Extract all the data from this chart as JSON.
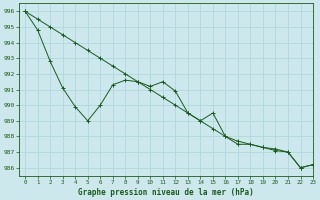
{
  "title": "Graphe pression niveau de la mer (hPa)",
  "bg_color": "#cce8ec",
  "grid_color": "#a8d4da",
  "line_color": "#1a5c1a",
  "xlim": [
    -0.5,
    23
  ],
  "ylim": [
    985.5,
    996.5
  ],
  "yticks": [
    986,
    987,
    988,
    989,
    990,
    991,
    992,
    993,
    994,
    995,
    996
  ],
  "xticks": [
    0,
    1,
    2,
    3,
    4,
    5,
    6,
    7,
    8,
    9,
    10,
    11,
    12,
    13,
    14,
    15,
    16,
    17,
    18,
    19,
    20,
    21,
    22,
    23
  ],
  "jagged_x": [
    0,
    1,
    2,
    3,
    4,
    5,
    6,
    7,
    8,
    9,
    10,
    11,
    12,
    13,
    14,
    15,
    16,
    17,
    18,
    19,
    20,
    21,
    22,
    23
  ],
  "jagged_y": [
    996.0,
    994.8,
    992.8,
    991.1,
    989.9,
    989.0,
    990.0,
    991.3,
    991.6,
    991.5,
    991.2,
    991.5,
    990.9,
    989.5,
    989.0,
    989.5,
    988.0,
    987.5,
    987.5,
    987.3,
    987.2,
    987.0,
    986.0,
    986.2
  ],
  "trend_x": [
    0,
    1,
    2,
    3,
    4,
    5,
    6,
    7,
    8,
    9,
    10,
    11,
    12,
    13,
    14,
    15,
    16,
    17,
    18,
    19,
    20,
    21,
    22,
    23
  ],
  "trend_y": [
    996.0,
    995.5,
    995.0,
    994.5,
    994.0,
    993.5,
    993.0,
    992.5,
    992.0,
    991.5,
    991.0,
    990.5,
    990.0,
    989.5,
    989.0,
    988.5,
    988.0,
    987.7,
    987.5,
    987.3,
    987.1,
    987.0,
    986.0,
    986.2
  ]
}
